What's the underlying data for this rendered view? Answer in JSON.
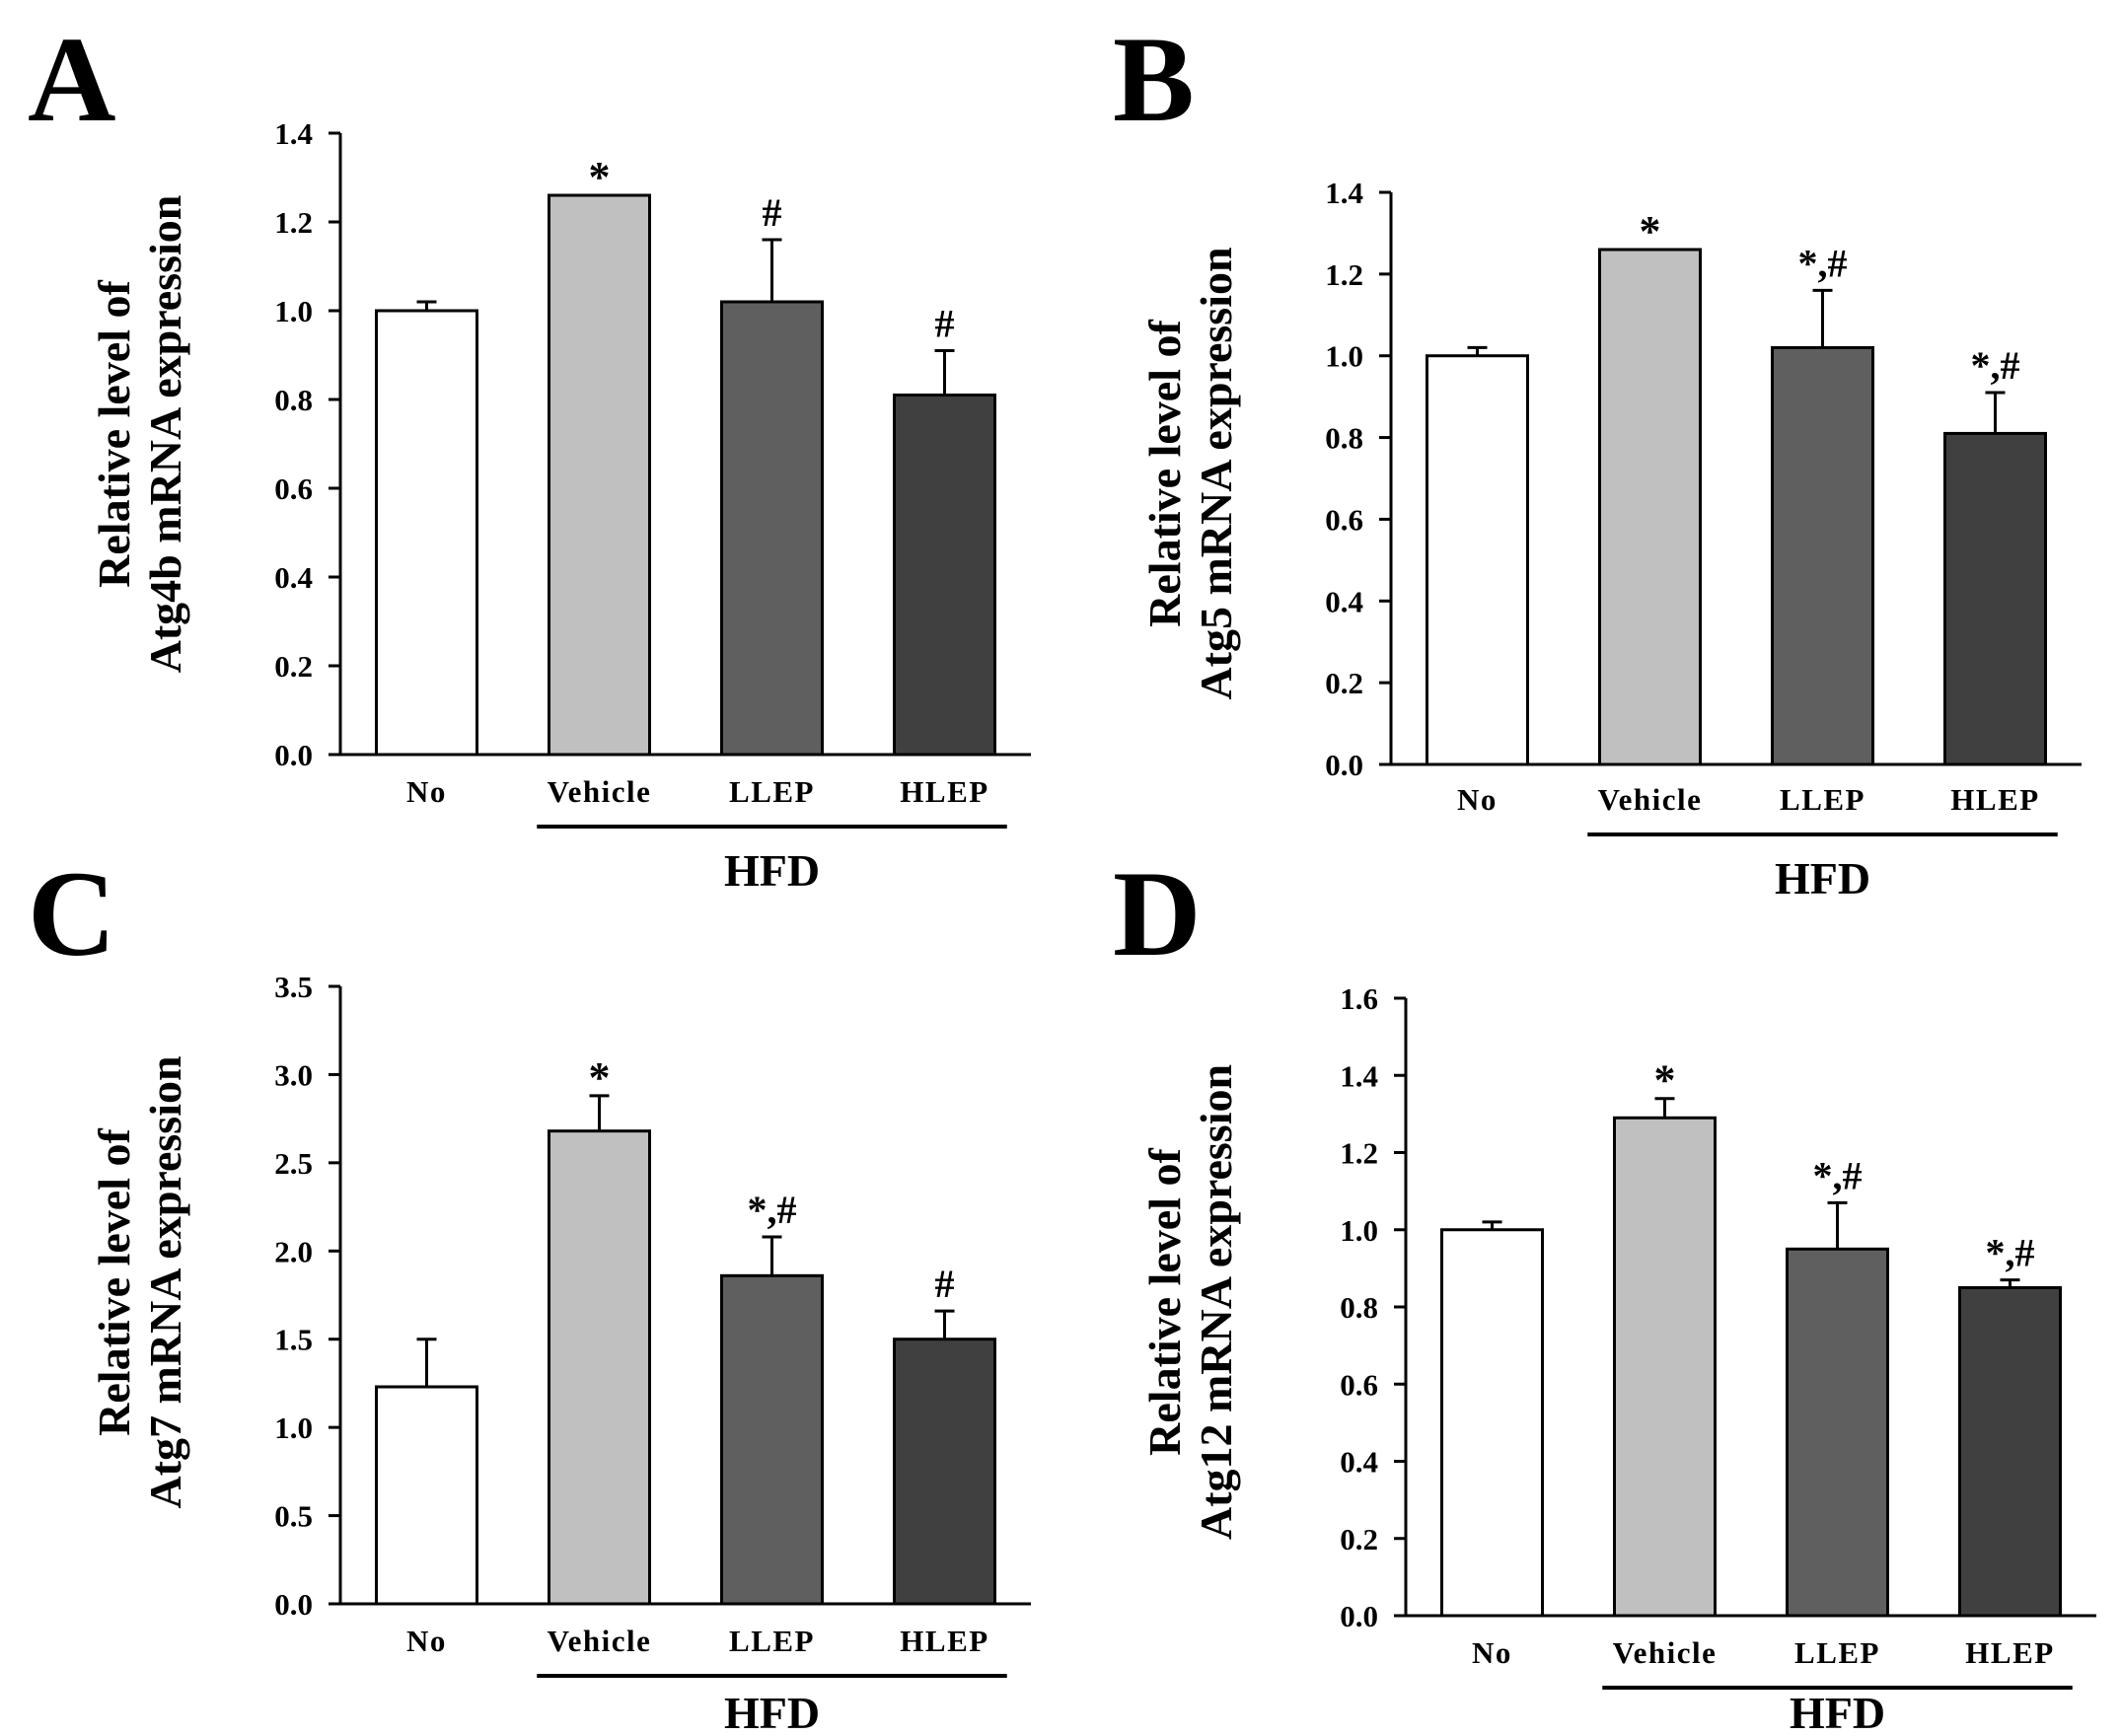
{
  "figure": {
    "background": "#ffffff"
  },
  "chart_data": [
    {
      "panel": "A",
      "type": "bar",
      "categories": [
        "No",
        "Vehicle",
        "LLEP",
        "HLEP"
      ],
      "values": [
        1.0,
        1.26,
        1.02,
        0.81
      ],
      "errors": [
        0.02,
        0.0,
        0.14,
        0.1
      ],
      "annotations": [
        "",
        "*",
        "#",
        "#"
      ],
      "colors": [
        "#ffffff",
        "#c0c0c0",
        "#5f5f5f",
        "#404040"
      ],
      "ylabel_lines": [
        "Relative level of",
        "Atg4b mRNA expression"
      ],
      "yticks": [
        "0.0",
        "0.2",
        "0.4",
        "0.6",
        "0.8",
        "1.0",
        "1.2",
        "1.4"
      ],
      "ylim": [
        0,
        1.4
      ],
      "group_label": "HFD",
      "group_span": [
        "Vehicle",
        "HLEP"
      ]
    },
    {
      "panel": "B",
      "type": "bar",
      "categories": [
        "No",
        "Vehicle",
        "LLEP",
        "HLEP"
      ],
      "values": [
        1.0,
        1.26,
        1.02,
        0.81
      ],
      "errors": [
        0.02,
        0.0,
        0.14,
        0.1
      ],
      "annotations": [
        "",
        "*",
        "*,#",
        "*,#"
      ],
      "colors": [
        "#ffffff",
        "#c0c0c0",
        "#5f5f5f",
        "#404040"
      ],
      "ylabel_lines": [
        "Relative level of",
        "Atg5 mRNA expression"
      ],
      "yticks": [
        "0.0",
        "0.2",
        "0.4",
        "0.6",
        "0.8",
        "1.0",
        "1.2",
        "1.4"
      ],
      "ylim": [
        0,
        1.4
      ],
      "group_label": "HFD",
      "group_span": [
        "Vehicle",
        "HLEP"
      ]
    },
    {
      "panel": "C",
      "type": "bar",
      "categories": [
        "No",
        "Vehicle",
        "LLEP",
        "HLEP"
      ],
      "values": [
        1.23,
        2.68,
        1.86,
        1.5
      ],
      "errors": [
        0.27,
        0.2,
        0.22,
        0.16
      ],
      "annotations": [
        "",
        "*",
        "*,#",
        "#"
      ],
      "colors": [
        "#ffffff",
        "#c0c0c0",
        "#5f5f5f",
        "#404040"
      ],
      "ylabel_lines": [
        "Relative level of",
        "Atg7 mRNA expression"
      ],
      "yticks": [
        "0.0",
        "0.5",
        "1.0",
        "1.5",
        "2.0",
        "2.5",
        "3.0",
        "3.5"
      ],
      "ylim": [
        0,
        3.5
      ],
      "group_label": "HFD",
      "group_span": [
        "Vehicle",
        "HLEP"
      ]
    },
    {
      "panel": "D",
      "type": "bar",
      "categories": [
        "No",
        "Vehicle",
        "LLEP",
        "HLEP"
      ],
      "values": [
        1.0,
        1.29,
        0.95,
        0.85
      ],
      "errors": [
        0.02,
        0.05,
        0.12,
        0.02
      ],
      "annotations": [
        "",
        "*",
        "*,#",
        "*,#"
      ],
      "colors": [
        "#ffffff",
        "#c0c0c0",
        "#5f5f5f",
        "#404040"
      ],
      "ylabel_lines": [
        "Relative level of",
        "Atg12 mRNA expression"
      ],
      "yticks": [
        "0.0",
        "0.2",
        "0.4",
        "0.6",
        "0.8",
        "1.0",
        "1.2",
        "1.4",
        "1.6"
      ],
      "ylim": [
        0,
        1.6
      ],
      "group_label": "HFD",
      "group_span": [
        "Vehicle",
        "HLEP"
      ]
    }
  ]
}
